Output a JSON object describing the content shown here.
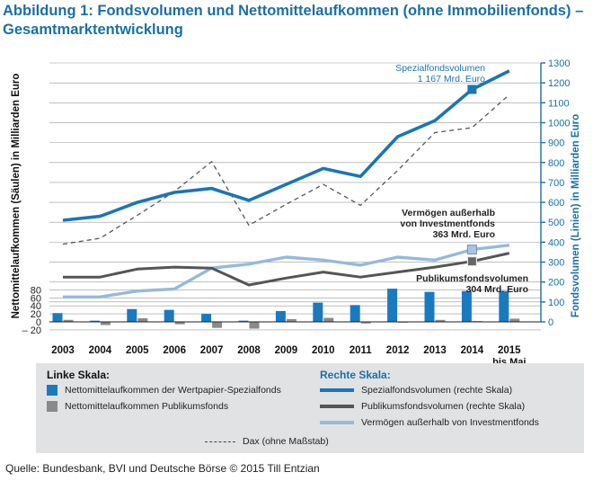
{
  "title": "Abbildung 1: Fondsvolumen und Nettomittelaufkommen (ohne Immobilienfonds) – Gesamtmarktentwicklung",
  "source": "Quelle: Bundesbank, BVI und Deutsche Börse © 2015 Till Entzian",
  "colors": {
    "title": "#1a6fa8",
    "spezial": "#1a75b8",
    "publikum": "#555555",
    "vermoegen": "#96b9dd",
    "dax": "#555555",
    "bar_spezial": "#1a7ac0",
    "bar_publikum": "#8a8a8a"
  },
  "legend": {
    "left_heading": "Linke Skala:",
    "right_heading": "Rechte Skala:",
    "bar_spezial": "Nettomittelaufkommen der Wertpapier-Spezialfonds",
    "bar_publikum": "Nettomittelaufkommen Publikumsfonds",
    "line_spezial": "Spezialfondsvolumen (rechte Skala)",
    "line_publikum": "Publikumsfondsvolumen (rechte Skala)",
    "line_vermoegen": "Vermögen außerhalb von Investmentfonds",
    "dax": "Dax (ohne Maßstab)"
  },
  "chart_data": {
    "type": "bar",
    "categories": [
      "2003",
      "2004",
      "2005",
      "2006",
      "2007",
      "2008",
      "2009",
      "2010",
      "2011",
      "2012",
      "2013",
      "2014",
      "2015"
    ],
    "category_sublabels": [
      "",
      "",
      "",
      "",
      "",
      "",
      "",
      "",
      "",
      "",
      "",
      "",
      "bis Mai"
    ],
    "ylabel_left": "Nettomittelaufkommen (Säulen) in Milliarden Euro",
    "ylabel_right": "Fondsvolumen (Linien) in Milliarden Euro",
    "ylim_left": [
      -20,
      80
    ],
    "yticks_left": [
      -20,
      0,
      20,
      40,
      60,
      80
    ],
    "ylim_right": [
      0,
      1300
    ],
    "yticks_right": [
      0,
      100,
      200,
      300,
      400,
      500,
      600,
      700,
      800,
      900,
      1000,
      1100,
      1200,
      1300
    ],
    "grid": true,
    "bars": [
      {
        "name": "Nettomittelaufkommen der Wertpapier-Spezialfonds",
        "axis": "left",
        "values": [
          22,
          3,
          32,
          30,
          20,
          3,
          27,
          48,
          42,
          83,
          75,
          77,
          77
        ]
      },
      {
        "name": "Nettomittelaufkommen Publikumsfonds",
        "axis": "left",
        "values": [
          5,
          -8,
          9,
          -6,
          -15,
          -17,
          7,
          10,
          -4,
          -2,
          5,
          2,
          8
        ]
      }
    ],
    "lines": [
      {
        "name": "Spezialfondsvolumen (rechte Skala)",
        "axis": "right",
        "values": [
          510,
          530,
          600,
          650,
          670,
          610,
          690,
          770,
          730,
          930,
          1010,
          1167,
          1260
        ]
      },
      {
        "name": "Publikumsfondsvolumen (rechte Skala)",
        "axis": "right",
        "values": [
          225,
          225,
          265,
          275,
          270,
          185,
          220,
          250,
          225,
          250,
          275,
          304,
          345
        ]
      },
      {
        "name": "Vermögen außerhalb von Investmentfonds",
        "axis": "right",
        "values": [
          125,
          125,
          155,
          165,
          270,
          290,
          325,
          310,
          285,
          325,
          310,
          363,
          385
        ]
      },
      {
        "name": "Dax (ohne Maßstab)",
        "axis": "right",
        "values": [
          390,
          420,
          535,
          655,
          805,
          485,
          590,
          690,
          585,
          760,
          950,
          975,
          1140
        ]
      }
    ],
    "annotations": [
      {
        "series": 0,
        "index": 11,
        "text_lines": [
          "Spezialfondsvolumen",
          "1 167 Mrd. Euro"
        ],
        "color": "#1a75b8"
      },
      {
        "series": 2,
        "index": 11,
        "text_lines": [
          "Vermögen außerhalb",
          "von Investmentfonds",
          "363 Mrd. Euro"
        ],
        "color": "#222222"
      },
      {
        "series": 1,
        "index": 11,
        "text_lines": [
          "Publikumsfondsvolumen",
          "304 Mrd. Euro"
        ],
        "color": "#222222"
      }
    ]
  }
}
